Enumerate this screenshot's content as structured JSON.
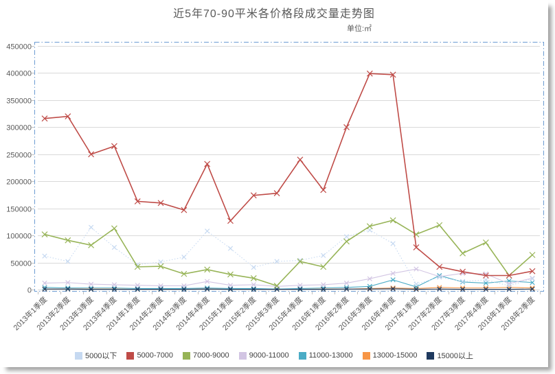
{
  "chart": {
    "title": "近5年70-90平米各价格段成交量走势图",
    "unit": "单位:㎡"
  },
  "chart_data": {
    "type": "line",
    "title": "近5年70-90平米各价格段成交量走势图",
    "unit_label": "单位:㎡",
    "marker": "x",
    "grid": true,
    "legend_position": "bottom",
    "ylim": [
      0,
      450000
    ],
    "ytick_step": 50000,
    "yticks": [
      0,
      50000,
      100000,
      150000,
      200000,
      250000,
      300000,
      350000,
      400000,
      450000
    ],
    "categories": [
      "2013年1季度",
      "2013年2季度",
      "2013年3季度",
      "2013年4季度",
      "2014年1季度",
      "2014年2季度",
      "2014年3季度",
      "2014年4季度",
      "2015年1季度",
      "2015年2季度",
      "2015年3季度",
      "2015年4季度",
      "2016年1季度",
      "2016年2季度",
      "2016年3季度",
      "2016年4季度",
      "2017年1季度",
      "2017年2季度",
      "2017年3季度",
      "2017年4季度",
      "2018年1季度",
      "2018年2季度"
    ],
    "series": [
      {
        "name": "5000以下",
        "key": "below-5000",
        "color": "#c6d9f1",
        "style": "dotted",
        "values": [
          62000,
          52000,
          115000,
          78000,
          46000,
          51000,
          60000,
          108000,
          76000,
          41000,
          52000,
          54000,
          63000,
          98000,
          110000,
          85000,
          10000,
          23000,
          15000,
          18000,
          7000,
          20000
        ]
      },
      {
        "name": "5000-7000",
        "key": "5000-7000",
        "color": "#bf4b47",
        "style": "solid",
        "values": [
          316000,
          320000,
          250000,
          265000,
          163000,
          160000,
          147000,
          232000,
          127000,
          174000,
          178000,
          240000,
          184000,
          300000,
          399000,
          397000,
          78000,
          42000,
          33000,
          26000,
          26000,
          34000
        ]
      },
      {
        "name": "7000-9000",
        "key": "7000-9000",
        "color": "#97b457",
        "style": "solid",
        "values": [
          102000,
          91000,
          82000,
          113000,
          42000,
          43000,
          29000,
          37000,
          28000,
          21000,
          7000,
          52000,
          42000,
          89000,
          117000,
          128000,
          102000,
          119000,
          67000,
          87000,
          26000,
          64000
        ]
      },
      {
        "name": "9000-11000",
        "key": "9000-11000",
        "color": "#d2c5e3",
        "style": "solid",
        "values": [
          12000,
          13000,
          10000,
          9000,
          8000,
          7000,
          7000,
          15000,
          8000,
          9000,
          6000,
          8000,
          9000,
          12000,
          20000,
          30000,
          38000,
          24000,
          30000,
          29000,
          11000,
          21000
        ]
      },
      {
        "name": "11000-13000",
        "key": "11000-13000",
        "color": "#4bacc6",
        "style": "solid",
        "values": [
          4000,
          3000,
          3000,
          3000,
          2000,
          2000,
          2000,
          3000,
          2000,
          2000,
          1000,
          2000,
          3000,
          4000,
          6000,
          18000,
          5000,
          26000,
          14000,
          12000,
          16000,
          13000
        ]
      },
      {
        "name": "13000-15000",
        "key": "13000-15000",
        "color": "#f79646",
        "style": "solid",
        "values": [
          1000,
          1000,
          1000,
          1000,
          500,
          500,
          500,
          1000,
          500,
          500,
          500,
          500,
          1000,
          1000,
          2000,
          3000,
          2000,
          4000,
          3000,
          3000,
          4000,
          3000
        ]
      },
      {
        "name": "15000以上",
        "key": "above-15000",
        "color": "#1f3a5f",
        "style": "solid",
        "values": [
          1000,
          1000,
          500,
          500,
          500,
          500,
          500,
          1000,
          500,
          500,
          500,
          500,
          500,
          1000,
          1000,
          1500,
          500,
          1000,
          500,
          500,
          500,
          1000
        ]
      }
    ],
    "axis_color": "#595959",
    "gridline_color": "#d9d9d9",
    "selection_border_color": "#6b9bd2"
  }
}
